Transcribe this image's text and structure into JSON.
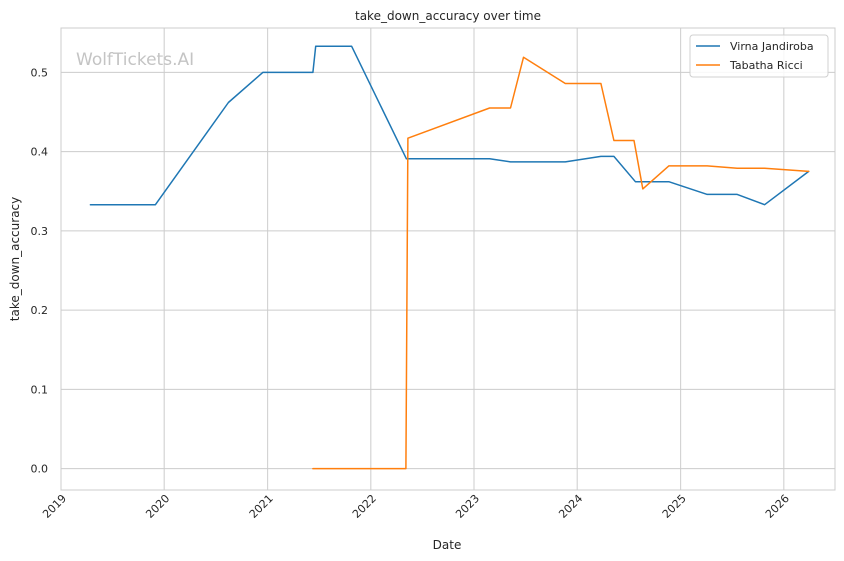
{
  "chart_data": {
    "type": "line",
    "title": "take_down_accuracy over time",
    "xlabel": "Date",
    "ylabel": "take_down_accuracy",
    "watermark": "WolfTickets.AI",
    "x_axis_type": "date",
    "xlim": [
      "2019-01-01",
      "2026-07-01"
    ],
    "ylim": [
      -0.027,
      0.556
    ],
    "x_ticks": [
      "2019",
      "2020",
      "2021",
      "2022",
      "2023",
      "2024",
      "2025",
      "2026"
    ],
    "y_ticks": [
      "0.0",
      "0.1",
      "0.2",
      "0.3",
      "0.4",
      "0.5"
    ],
    "grid": true,
    "legend_position": "top-right",
    "series": [
      {
        "name": "Virna Jandiroba",
        "color": "#1f77b4",
        "points": [
          [
            "2019-04-15",
            0.333
          ],
          [
            "2019-12-01",
            0.333
          ],
          [
            "2020-08-15",
            0.462
          ],
          [
            "2020-12-15",
            0.5
          ],
          [
            "2021-06-10",
            0.5
          ],
          [
            "2021-06-20",
            0.533
          ],
          [
            "2021-10-25",
            0.533
          ],
          [
            "2022-05-07",
            0.391
          ],
          [
            "2023-02-25",
            0.391
          ],
          [
            "2023-05-10",
            0.387
          ],
          [
            "2023-11-20",
            0.387
          ],
          [
            "2024-03-25",
            0.394
          ],
          [
            "2024-05-10",
            0.394
          ],
          [
            "2024-07-25",
            0.362
          ],
          [
            "2024-11-20",
            0.362
          ],
          [
            "2025-04-05",
            0.346
          ],
          [
            "2025-07-20",
            0.346
          ],
          [
            "2025-10-25",
            0.333
          ],
          [
            "2026-03-30",
            0.375
          ]
        ]
      },
      {
        "name": "Tabatha Ricci",
        "color": "#ff7f0e",
        "points": [
          [
            "2021-06-10",
            0.0
          ],
          [
            "2022-05-05",
            0.0
          ],
          [
            "2022-05-12",
            0.417
          ],
          [
            "2023-02-25",
            0.455
          ],
          [
            "2023-05-10",
            0.455
          ],
          [
            "2023-06-25",
            0.519
          ],
          [
            "2023-11-20",
            0.486
          ],
          [
            "2024-03-25",
            0.486
          ],
          [
            "2024-05-10",
            0.414
          ],
          [
            "2024-07-20",
            0.414
          ],
          [
            "2024-08-20",
            0.353
          ],
          [
            "2024-11-20",
            0.382
          ],
          [
            "2025-04-05",
            0.382
          ],
          [
            "2025-07-20",
            0.379
          ],
          [
            "2025-10-25",
            0.379
          ],
          [
            "2026-03-30",
            0.375
          ]
        ]
      }
    ]
  }
}
